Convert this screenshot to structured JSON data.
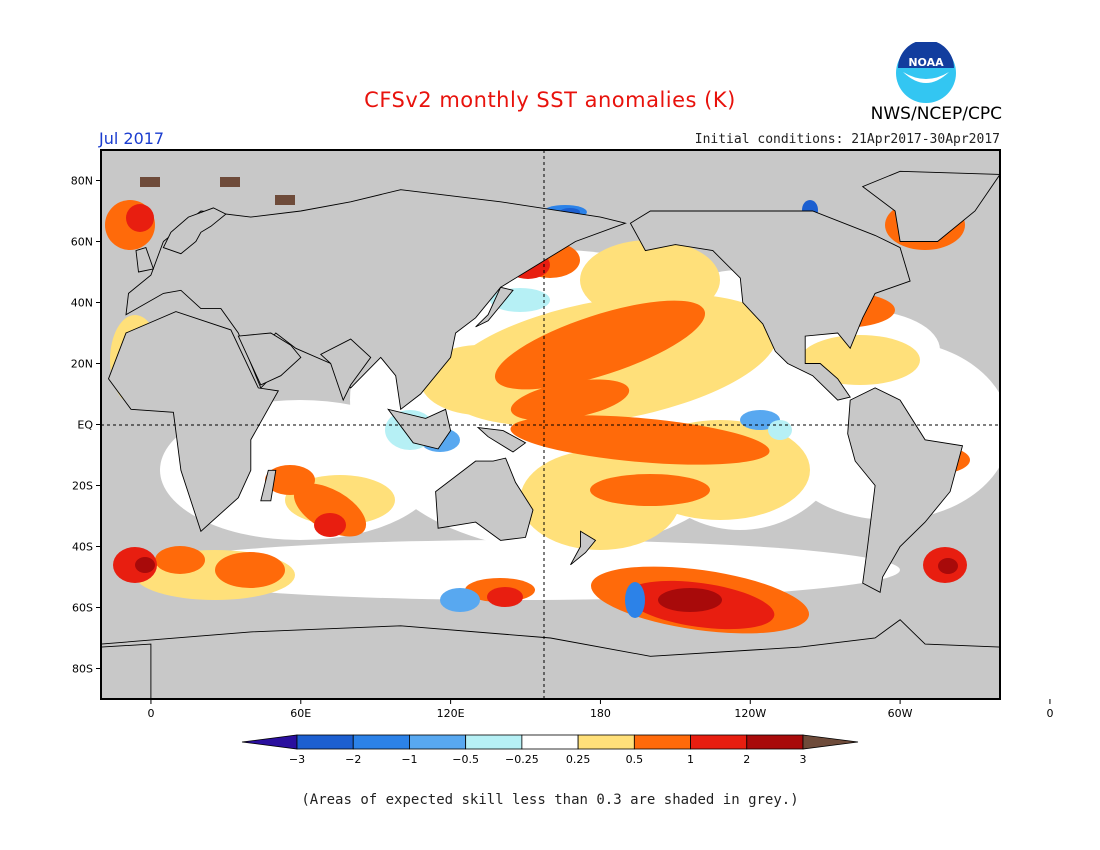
{
  "header": {
    "title": "CFSv2 monthly SST anomalies (K)",
    "agency": "NWS/NCEP/CPC",
    "logo_text": "NOAA",
    "period": "Jul 2017",
    "initial_conditions": "Initial conditions: 21Apr2017-30Apr2017"
  },
  "map": {
    "projection": "equirectangular",
    "lon_range": [
      -20,
      340
    ],
    "lat_range": [
      -90,
      90
    ],
    "land_color": "#c8c8c8",
    "ocean_base_color": "#ffffff",
    "reference_lines": [
      "equator dashed",
      "180 meridian dashed"
    ],
    "lat_ticks": [
      {
        "value": 80,
        "label": "80N"
      },
      {
        "value": 60,
        "label": "60N"
      },
      {
        "value": 40,
        "label": "40N"
      },
      {
        "value": 20,
        "label": "20N"
      },
      {
        "value": 0,
        "label": "EQ"
      },
      {
        "value": -20,
        "label": "20S"
      },
      {
        "value": -40,
        "label": "40S"
      },
      {
        "value": -60,
        "label": "60S"
      },
      {
        "value": -80,
        "label": "80S"
      }
    ],
    "lon_ticks": [
      {
        "value": 0,
        "label": "0"
      },
      {
        "value": 60,
        "label": "60E"
      },
      {
        "value": 120,
        "label": "120E"
      },
      {
        "value": 180,
        "label": "180"
      },
      {
        "value": 240,
        "label": "120W"
      },
      {
        "value": 300,
        "label": "60W"
      },
      {
        "value": 360,
        "label": "0"
      }
    ]
  },
  "colorbar": {
    "bins": [
      {
        "color": "#2a0f9e"
      },
      {
        "color": "#1c5fd0"
      },
      {
        "color": "#2c82e8"
      },
      {
        "color": "#58a8f0"
      },
      {
        "color": "#b6f0f5"
      },
      {
        "color": "#ffffff"
      },
      {
        "color": "#ffe07a"
      },
      {
        "color": "#ff6a0a"
      },
      {
        "color": "#e81e10"
      },
      {
        "color": "#a80a0a"
      },
      {
        "color": "#6e4b3a"
      }
    ],
    "boundaries": [
      "-3",
      "-2",
      "-1",
      "-0.5",
      "-0.25",
      "0.25",
      "0.5",
      "1",
      "2",
      "3"
    ]
  },
  "footnote": "(Areas of expected skill less than 0.3 are shaded in grey.)"
}
